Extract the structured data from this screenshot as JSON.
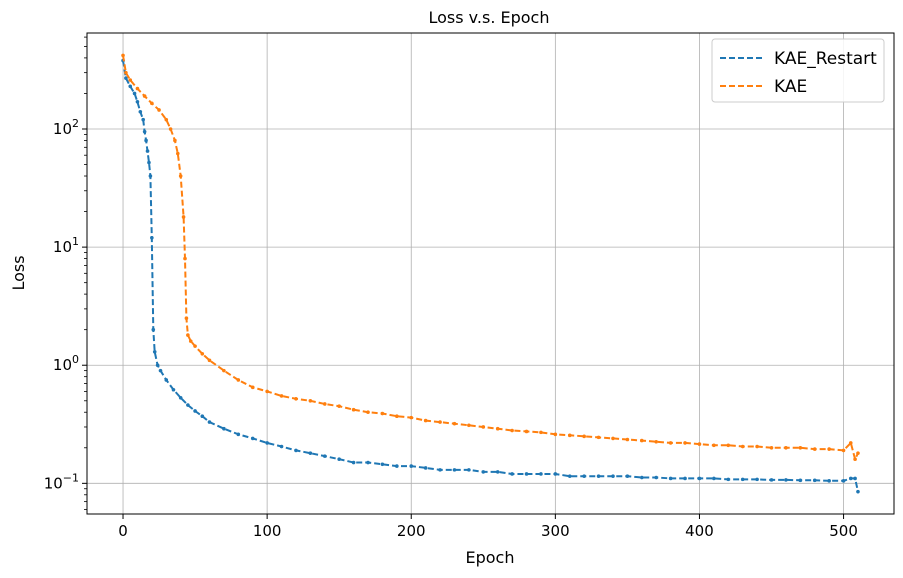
{
  "chart_data": {
    "type": "line",
    "title": "Loss v.s. Epoch",
    "xlabel": "Epoch",
    "ylabel": "Loss",
    "yscale": "log",
    "xlim": [
      -25,
      535
    ],
    "ylim": [
      0.055,
      650
    ],
    "x_ticks": [
      0,
      100,
      200,
      300,
      400,
      500
    ],
    "y_ticks": [
      {
        "value": 0.1,
        "base": "10",
        "exp": "−1"
      },
      {
        "value": 1,
        "base": "10",
        "exp": "0"
      },
      {
        "value": 10,
        "base": "10",
        "exp": "1"
      },
      {
        "value": 100,
        "base": "10",
        "exp": "2"
      }
    ],
    "grid": true,
    "legend_position": "top-right",
    "series": [
      {
        "name": "KAE_Restart",
        "color": "#1f77b4",
        "style": "dashed-with-dots",
        "points": [
          [
            0,
            380
          ],
          [
            2,
            270
          ],
          [
            5,
            230
          ],
          [
            8,
            200
          ],
          [
            10,
            170
          ],
          [
            12,
            140
          ],
          [
            14,
            120
          ],
          [
            15,
            95
          ],
          [
            16,
            80
          ],
          [
            17,
            65
          ],
          [
            18,
            52
          ],
          [
            19,
            40
          ],
          [
            20,
            12
          ],
          [
            21,
            2.0
          ],
          [
            22,
            1.3
          ],
          [
            24,
            1.0
          ],
          [
            26,
            0.9
          ],
          [
            30,
            0.75
          ],
          [
            35,
            0.62
          ],
          [
            40,
            0.53
          ],
          [
            45,
            0.46
          ],
          [
            50,
            0.41
          ],
          [
            55,
            0.37
          ],
          [
            60,
            0.33
          ],
          [
            70,
            0.29
          ],
          [
            80,
            0.26
          ],
          [
            90,
            0.24
          ],
          [
            100,
            0.22
          ],
          [
            110,
            0.205
          ],
          [
            120,
            0.19
          ],
          [
            130,
            0.18
          ],
          [
            140,
            0.17
          ],
          [
            150,
            0.16
          ],
          [
            160,
            0.15
          ],
          [
            170,
            0.15
          ],
          [
            180,
            0.145
          ],
          [
            190,
            0.14
          ],
          [
            200,
            0.14
          ],
          [
            210,
            0.135
          ],
          [
            220,
            0.13
          ],
          [
            230,
            0.13
          ],
          [
            240,
            0.13
          ],
          [
            250,
            0.125
          ],
          [
            260,
            0.125
          ],
          [
            270,
            0.12
          ],
          [
            280,
            0.12
          ],
          [
            290,
            0.12
          ],
          [
            300,
            0.12
          ],
          [
            310,
            0.115
          ],
          [
            320,
            0.115
          ],
          [
            330,
            0.115
          ],
          [
            340,
            0.115
          ],
          [
            350,
            0.115
          ],
          [
            360,
            0.112
          ],
          [
            370,
            0.112
          ],
          [
            380,
            0.11
          ],
          [
            390,
            0.11
          ],
          [
            400,
            0.11
          ],
          [
            410,
            0.11
          ],
          [
            420,
            0.108
          ],
          [
            430,
            0.108
          ],
          [
            440,
            0.108
          ],
          [
            450,
            0.107
          ],
          [
            460,
            0.107
          ],
          [
            470,
            0.106
          ],
          [
            480,
            0.106
          ],
          [
            490,
            0.105
          ],
          [
            500,
            0.105
          ],
          [
            505,
            0.11
          ],
          [
            508,
            0.11
          ],
          [
            510,
            0.085
          ]
        ]
      },
      {
        "name": "KAE",
        "color": "#ff7f0e",
        "style": "dashed-with-dots",
        "points": [
          [
            0,
            420
          ],
          [
            2,
            300
          ],
          [
            5,
            260
          ],
          [
            10,
            220
          ],
          [
            15,
            190
          ],
          [
            20,
            165
          ],
          [
            25,
            145
          ],
          [
            30,
            120
          ],
          [
            33,
            100
          ],
          [
            36,
            80
          ],
          [
            38,
            62
          ],
          [
            40,
            40
          ],
          [
            42,
            18
          ],
          [
            43,
            8
          ],
          [
            44,
            2.5
          ],
          [
            45,
            1.8
          ],
          [
            47,
            1.6
          ],
          [
            50,
            1.45
          ],
          [
            55,
            1.25
          ],
          [
            60,
            1.1
          ],
          [
            70,
            0.9
          ],
          [
            80,
            0.75
          ],
          [
            90,
            0.65
          ],
          [
            100,
            0.6
          ],
          [
            110,
            0.55
          ],
          [
            120,
            0.52
          ],
          [
            130,
            0.5
          ],
          [
            140,
            0.47
          ],
          [
            150,
            0.45
          ],
          [
            160,
            0.42
          ],
          [
            170,
            0.4
          ],
          [
            180,
            0.39
          ],
          [
            190,
            0.37
          ],
          [
            200,
            0.36
          ],
          [
            210,
            0.34
          ],
          [
            220,
            0.33
          ],
          [
            230,
            0.32
          ],
          [
            240,
            0.31
          ],
          [
            250,
            0.3
          ],
          [
            260,
            0.29
          ],
          [
            270,
            0.28
          ],
          [
            280,
            0.275
          ],
          [
            290,
            0.27
          ],
          [
            300,
            0.26
          ],
          [
            310,
            0.255
          ],
          [
            320,
            0.25
          ],
          [
            330,
            0.245
          ],
          [
            340,
            0.24
          ],
          [
            350,
            0.235
          ],
          [
            360,
            0.23
          ],
          [
            370,
            0.225
          ],
          [
            380,
            0.22
          ],
          [
            390,
            0.22
          ],
          [
            400,
            0.215
          ],
          [
            410,
            0.21
          ],
          [
            420,
            0.21
          ],
          [
            430,
            0.205
          ],
          [
            440,
            0.205
          ],
          [
            450,
            0.2
          ],
          [
            460,
            0.2
          ],
          [
            470,
            0.2
          ],
          [
            480,
            0.195
          ],
          [
            490,
            0.195
          ],
          [
            500,
            0.19
          ],
          [
            505,
            0.22
          ],
          [
            508,
            0.16
          ],
          [
            510,
            0.18
          ]
        ]
      }
    ]
  }
}
